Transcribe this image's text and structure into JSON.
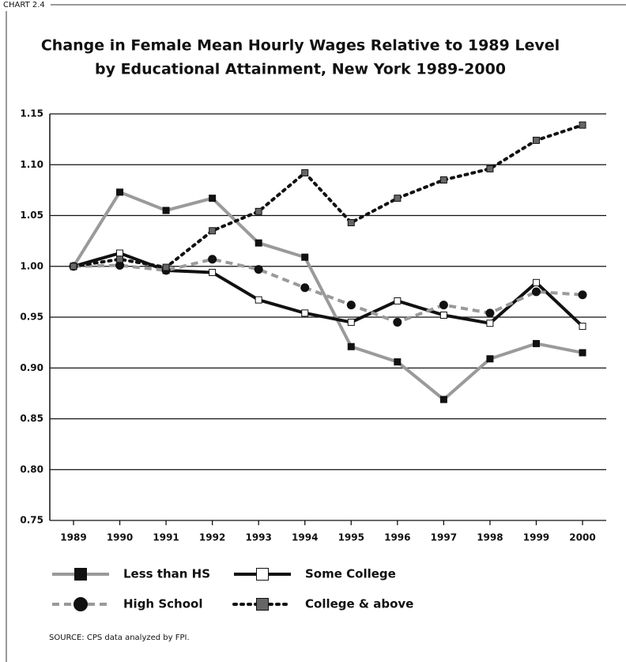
{
  "header": "CHART 2.4",
  "source": "SOURCE: CPS data analyzed by FPI.",
  "chart_data": {
    "type": "line",
    "title": [
      "Change in Female Mean Hourly Wages Relative to 1989 Level",
      "by Educational Attainment, New York 1989-2000"
    ],
    "categories": [
      "1989",
      "1990",
      "1991",
      "1992",
      "1993",
      "1994",
      "1995",
      "1996",
      "1997",
      "1998",
      "1999",
      "2000"
    ],
    "ylim": [
      0.75,
      1.15
    ],
    "yticks": [
      0.75,
      {
        "value": 0.8,
        "label": "0.80"
      },
      0.85,
      {
        "value": 0.9,
        "label": "0.90"
      },
      0.95,
      {
        "value": 1,
        "label": "1.00"
      },
      1.05,
      {
        "value": 1.1,
        "label": "1.10"
      },
      1.15
    ],
    "grid": true,
    "series": [
      {
        "name": "Less than HS",
        "color": "#9a9a9a",
        "line_style": "solid",
        "marker": "square",
        "marker_color": "#111111",
        "values": [
          1.0,
          1.073,
          1.055,
          1.067,
          1.023,
          1.009,
          0.921,
          0.906,
          0.869,
          0.909,
          0.924,
          0.915
        ]
      },
      {
        "name": "Some College",
        "color": "#111111",
        "line_style": "solid",
        "marker": "square",
        "marker_color": "#ffffff",
        "values": [
          1.0,
          1.013,
          0.996,
          0.994,
          0.967,
          0.954,
          0.945,
          0.966,
          0.952,
          0.944,
          0.984,
          0.941
        ]
      },
      {
        "name": "High School",
        "color": "#9a9a9a",
        "line_style": "dashed",
        "marker": "circle",
        "marker_color": "#111111",
        "values": [
          1.0,
          1.001,
          0.996,
          1.007,
          0.997,
          0.979,
          0.962,
          0.945,
          0.962,
          0.954,
          0.975,
          0.972
        ]
      },
      {
        "name": "College & above",
        "color": "#111111",
        "line_style": "dotted",
        "marker": "square",
        "marker_color": "#666666",
        "values": [
          1.0,
          1.007,
          0.999,
          1.035,
          1.054,
          1.092,
          1.043,
          1.067,
          1.085,
          1.096,
          1.124,
          1.139
        ]
      }
    ]
  }
}
